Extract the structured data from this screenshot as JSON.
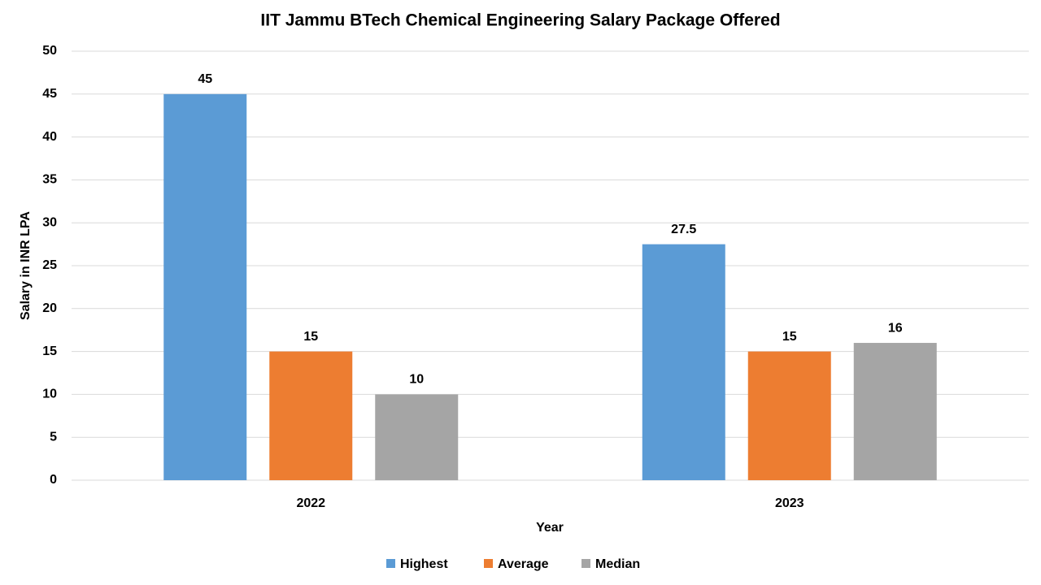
{
  "chart_data": {
    "type": "bar",
    "title": "IIT Jammu BTech Chemical Engineering Salary Package Offered",
    "x_label": "Year",
    "y_label": "Salary in INR LPA",
    "categories": [
      "2022",
      "2023"
    ],
    "series": [
      {
        "name": "Highest",
        "color": "#5b9bd5",
        "values": [
          45,
          27.5
        ]
      },
      {
        "name": "Average",
        "color": "#ed7d31",
        "values": [
          15,
          15
        ]
      },
      {
        "name": "Median",
        "color": "#a5a5a5",
        "values": [
          10,
          16
        ]
      }
    ],
    "ylim": [
      0,
      50
    ],
    "yticks": [
      0,
      5,
      10,
      15,
      20,
      25,
      30,
      35,
      40,
      45,
      50
    ],
    "grid": true,
    "legend": "bottom"
  }
}
